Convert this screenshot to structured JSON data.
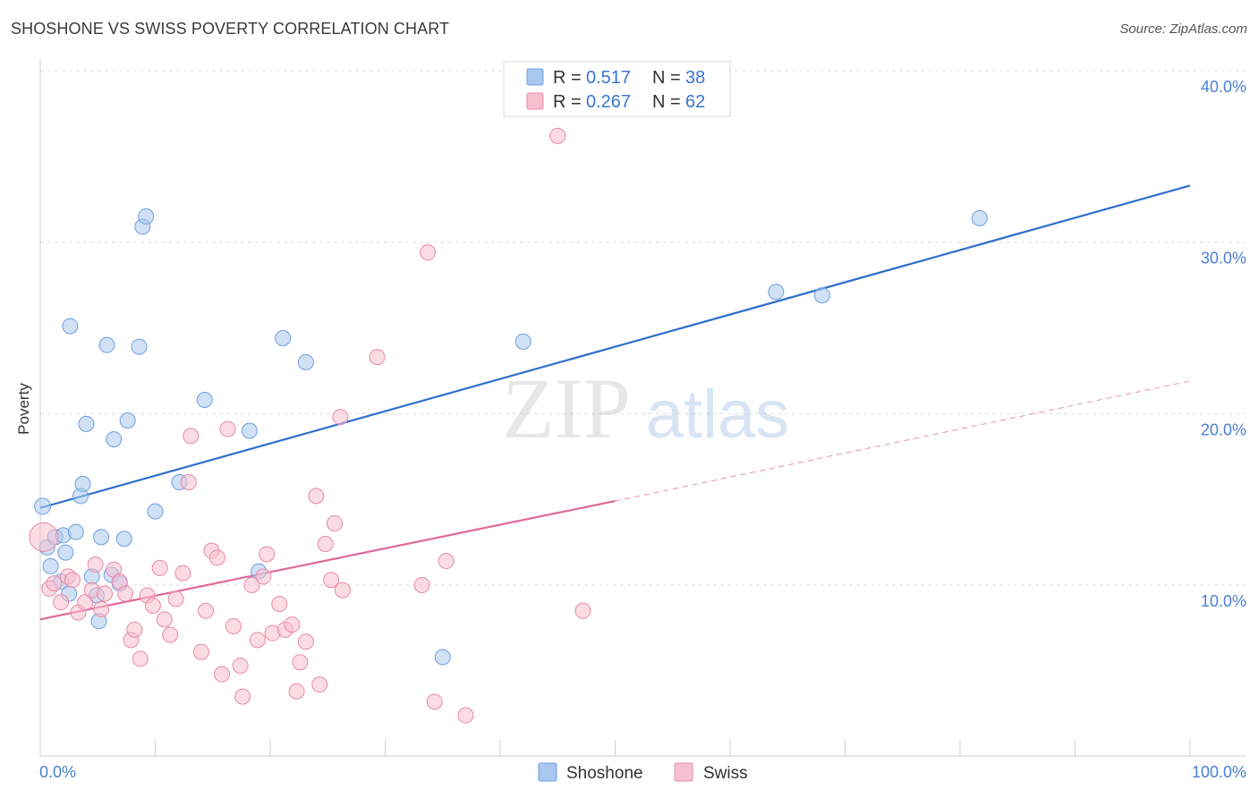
{
  "header": {
    "title": "SHOSHONE VS SWISS POVERTY CORRELATION CHART",
    "source": "Source: ZipAtlas.com"
  },
  "watermark": {
    "zip": "ZIP",
    "atlas": "atlas"
  },
  "legend": {
    "rows": [
      {
        "r_label": "R =",
        "r_value": "0.517",
        "n_label": "N =",
        "n_value": "38",
        "color": "#a9c8ef",
        "border": "#6d9fe0"
      },
      {
        "r_label": "R =",
        "r_value": "0.267",
        "n_label": "N =",
        "n_value": "62",
        "color": "#f7c0d0",
        "border": "#e88aa8"
      }
    ]
  },
  "bottom_legend": [
    {
      "label": "Shoshone",
      "color": "#a9c8ef",
      "border": "#6d9fe0"
    },
    {
      "label": "Swiss",
      "color": "#f7c0d0",
      "border": "#e88aa8"
    }
  ],
  "chart_data": {
    "type": "scatter",
    "title": "SHOSHONE VS SWISS POVERTY CORRELATION CHART",
    "xlabel": "",
    "ylabel": "Poverty",
    "xlim": [
      0,
      100
    ],
    "ylim": [
      0,
      42
    ],
    "x_tick_labels": [
      "0.0%",
      "100.0%"
    ],
    "y_ticks": [
      10,
      20,
      30,
      40
    ],
    "y_tick_labels": [
      "10.0%",
      "20.0%",
      "30.0%",
      "40.0%"
    ],
    "grid": true,
    "legend_position": "top-center",
    "series": [
      {
        "name": "Shoshone",
        "color": "#a9c8ef",
        "stroke": "#6d9fe0",
        "trend": {
          "x": [
            0,
            100
          ],
          "y": [
            14.5,
            33.3
          ],
          "color": "#2d6fce"
        },
        "points": [
          [
            0.2,
            14.6
          ],
          [
            0.6,
            12.2
          ],
          [
            0.9,
            11.1
          ],
          [
            1.3,
            12.8
          ],
          [
            1.8,
            10.2
          ],
          [
            2.0,
            12.9
          ],
          [
            2.2,
            11.9
          ],
          [
            2.5,
            9.5
          ],
          [
            3.1,
            13.1
          ],
          [
            3.5,
            15.2
          ],
          [
            3.7,
            15.9
          ],
          [
            4.0,
            19.4
          ],
          [
            4.5,
            10.5
          ],
          [
            4.9,
            9.4
          ],
          [
            5.1,
            7.9
          ],
          [
            5.3,
            12.8
          ],
          [
            5.8,
            24.0
          ],
          [
            6.2,
            10.6
          ],
          [
            6.4,
            18.5
          ],
          [
            6.9,
            10.1
          ],
          [
            7.3,
            12.7
          ],
          [
            7.6,
            19.6
          ],
          [
            8.6,
            23.9
          ],
          [
            8.9,
            30.9
          ],
          [
            9.2,
            31.5
          ],
          [
            10.0,
            14.3
          ],
          [
            12.1,
            16.0
          ],
          [
            14.3,
            20.8
          ],
          [
            18.2,
            19.0
          ],
          [
            19.0,
            10.8
          ],
          [
            21.1,
            24.4
          ],
          [
            23.1,
            23.0
          ],
          [
            2.6,
            25.1
          ],
          [
            35.0,
            5.8
          ],
          [
            42.0,
            24.2
          ],
          [
            64.0,
            27.1
          ],
          [
            68.0,
            26.9
          ],
          [
            81.7,
            31.4
          ]
        ]
      },
      {
        "name": "Swiss",
        "color": "#f7c0d0",
        "stroke": "#e88aa8",
        "trend": {
          "x": [
            0,
            50
          ],
          "y": [
            8.0,
            14.9
          ],
          "color": "#e2689a",
          "dashed_to": {
            "x": 100,
            "y": 21.9
          }
        },
        "points": [
          [
            0.3,
            12.8
          ],
          [
            0.8,
            9.8
          ],
          [
            1.2,
            10.1
          ],
          [
            1.8,
            9.0
          ],
          [
            2.4,
            10.5
          ],
          [
            2.8,
            10.3
          ],
          [
            3.3,
            8.4
          ],
          [
            3.9,
            9.0
          ],
          [
            4.5,
            9.7
          ],
          [
            4.8,
            11.2
          ],
          [
            5.3,
            8.6
          ],
          [
            5.6,
            9.5
          ],
          [
            6.4,
            10.9
          ],
          [
            6.9,
            10.2
          ],
          [
            7.4,
            9.5
          ],
          [
            7.9,
            6.8
          ],
          [
            8.2,
            7.4
          ],
          [
            8.7,
            5.7
          ],
          [
            9.3,
            9.4
          ],
          [
            9.8,
            8.8
          ],
          [
            10.4,
            11.0
          ],
          [
            10.8,
            8.0
          ],
          [
            11.3,
            7.1
          ],
          [
            11.8,
            9.2
          ],
          [
            12.4,
            10.7
          ],
          [
            12.9,
            16.0
          ],
          [
            13.1,
            18.7
          ],
          [
            14.0,
            6.1
          ],
          [
            14.4,
            8.5
          ],
          [
            14.9,
            12.0
          ],
          [
            15.4,
            11.6
          ],
          [
            15.8,
            4.8
          ],
          [
            16.3,
            19.1
          ],
          [
            16.8,
            7.6
          ],
          [
            17.4,
            5.3
          ],
          [
            17.6,
            3.5
          ],
          [
            18.4,
            10.0
          ],
          [
            18.9,
            6.8
          ],
          [
            19.4,
            10.5
          ],
          [
            19.7,
            11.8
          ],
          [
            20.2,
            7.2
          ],
          [
            20.8,
            8.9
          ],
          [
            21.3,
            7.4
          ],
          [
            21.9,
            7.7
          ],
          [
            22.3,
            3.8
          ],
          [
            22.6,
            5.5
          ],
          [
            23.1,
            6.7
          ],
          [
            24.0,
            15.2
          ],
          [
            24.3,
            4.2
          ],
          [
            24.8,
            12.4
          ],
          [
            25.3,
            10.3
          ],
          [
            25.6,
            13.6
          ],
          [
            26.3,
            9.7
          ],
          [
            26.1,
            19.8
          ],
          [
            29.3,
            23.3
          ],
          [
            33.2,
            10.0
          ],
          [
            33.7,
            29.4
          ],
          [
            34.3,
            3.2
          ],
          [
            35.3,
            11.4
          ],
          [
            37.0,
            2.4
          ],
          [
            45.0,
            36.2
          ],
          [
            47.2,
            8.5
          ]
        ]
      }
    ]
  }
}
